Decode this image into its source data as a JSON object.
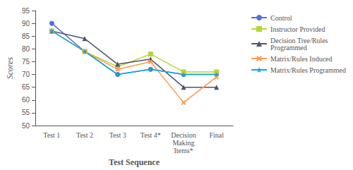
{
  "chart_data": {
    "type": "line",
    "categories": [
      "Test 1",
      "Test 2",
      "Test 3",
      "Test 4*",
      "Decision\nMaking\nItems*",
      "Final"
    ],
    "series": [
      {
        "name": "Control",
        "values": [
          90,
          79,
          70,
          72,
          70,
          70
        ],
        "marker": "circle"
      },
      {
        "name": "Instructor Provided",
        "values": [
          87,
          79,
          73,
          78,
          71,
          71
        ],
        "marker": "square"
      },
      {
        "name": "Decision Tree/Rules\nProgrammed",
        "values": [
          87,
          84,
          74,
          76,
          65,
          65
        ],
        "marker": "triangle"
      },
      {
        "name": "Matrix/Rules Induced",
        "values": [
          87,
          79,
          72,
          75,
          59,
          69
        ],
        "marker": "x"
      },
      {
        "name": "Matrix/Rules Programmed",
        "values": [
          87,
          79,
          70,
          72,
          70,
          70
        ],
        "marker": "star"
      }
    ],
    "xlabel": "Test Sequence",
    "ylabel": "Scores",
    "ylim": [
      50,
      95
    ],
    "yticks": [
      50,
      55,
      60,
      65,
      70,
      75,
      80,
      85,
      90,
      95
    ],
    "grid": false,
    "legend": "right"
  }
}
